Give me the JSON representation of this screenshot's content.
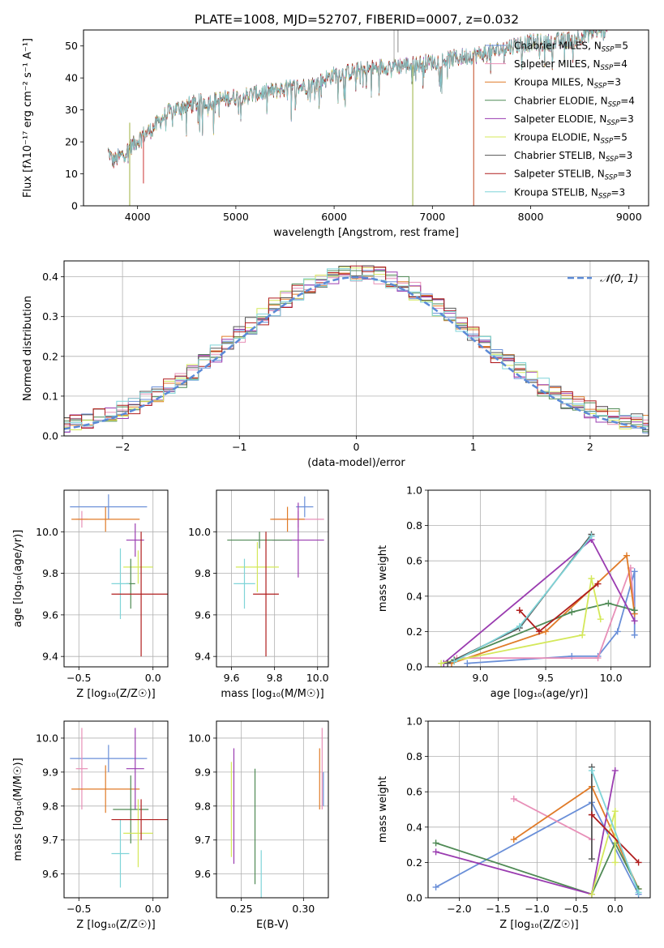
{
  "chart_data": [
    {
      "type": "line",
      "title": "PLATE=1008, MJD=52707, FIBERID=0007, z=0.032",
      "xlabel": "wavelength [Angstrom, rest frame]",
      "ylabel": "Flux [fλ10⁻¹⁷ erg cm⁻² s⁻¹ A⁻¹]",
      "xlim": [
        3450,
        9200
      ],
      "ylim": [
        0,
        55
      ],
      "xticks": [
        4000,
        5000,
        6000,
        7000,
        8000,
        9000
      ],
      "yticks": [
        0,
        10,
        20,
        30,
        40,
        50
      ],
      "grid": false,
      "legend_position": "top-right",
      "continuum": {
        "x": [
          3700,
          3750,
          3850,
          3950,
          4050,
          4150,
          4300,
          4450,
          4600,
          4800,
          5000,
          5200,
          5400,
          5600,
          5800,
          6000,
          6200,
          6400,
          6600,
          6800,
          7000,
          7200,
          7400,
          7600,
          7800,
          8000,
          8200,
          8400,
          8600,
          8750
        ],
        "y": [
          17,
          14,
          16,
          19,
          22,
          24,
          29,
          31,
          32,
          33,
          34,
          35,
          36,
          37,
          38,
          41,
          42,
          43,
          44,
          44,
          45,
          46,
          47,
          48,
          50,
          51,
          51,
          52,
          54,
          55
        ]
      },
      "series": [
        {
          "name": "Chabrier MILES, Nₛₛₚ=5",
          "label_main": "Chabrier MILES, N",
          "label_sub": "SSP",
          "label_tail": "=5",
          "color": "#6a8fd8"
        },
        {
          "name": "Salpeter MILES, Nₛₛₚ=4",
          "label_main": "Salpeter MILES, N",
          "label_sub": "SSP",
          "label_tail": "=4",
          "color": "#e890b8"
        },
        {
          "name": "Kroupa MILES, Nₛₛₚ=3",
          "label_main": "Kroupa MILES, N",
          "label_sub": "SSP",
          "label_tail": "=3",
          "color": "#e07b28"
        },
        {
          "name": "Chabrier ELODIE, Nₛₛₚ=4",
          "label_main": "Chabrier ELODIE, N",
          "label_sub": "SSP",
          "label_tail": "=4",
          "color": "#4f8a55"
        },
        {
          "name": "Salpeter ELODIE, Nₛₛₚ=3",
          "label_main": "Salpeter ELODIE, N",
          "label_sub": "SSP",
          "label_tail": "=3",
          "color": "#9a3cb0"
        },
        {
          "name": "Kroupa ELODIE, Nₛₛₚ=5",
          "label_main": "Kroupa ELODIE, N",
          "label_sub": "SSP",
          "label_tail": "=5",
          "color": "#d4e85a"
        },
        {
          "name": "Chabrier STELIB, Nₛₛₚ=3",
          "label_main": "Chabrier STELIB, N",
          "label_sub": "SSP",
          "label_tail": "=3",
          "color": "#555555"
        },
        {
          "name": "Salpeter STELIB, Nₛₛₚ=3",
          "label_main": "Salpeter STELIB, N",
          "label_sub": "SSP",
          "label_tail": "=3",
          "color": "#b01e1e"
        },
        {
          "name": "Kroupa STELIB, Nₛₛₚ=3",
          "label_main": "Kroupa STELIB, N",
          "label_sub": "SSP",
          "label_tail": "=3",
          "color": "#7fd4d8"
        }
      ]
    },
    {
      "type": "line",
      "xlabel": "(data-model)/error",
      "ylabel": "Normed distribution",
      "xlim": [
        -2.5,
        2.5
      ],
      "ylim": [
        0,
        0.44
      ],
      "xticks": [
        -2,
        -1,
        0,
        1,
        2
      ],
      "yticks": [
        0.0,
        0.1,
        0.2,
        0.3,
        0.4
      ],
      "grid": true,
      "legend_position": "top-right",
      "legend": "𝒩(0, 1)",
      "gaussian": {
        "mean": 0,
        "sigma": 1,
        "color": "#5b8ad6",
        "style": "dashed"
      }
    },
    {
      "type": "scatter",
      "xlabel": "Z [log₁₀(Z/Z☉)]",
      "ylabel": "age  [log₁₀(age/yr)]",
      "xlim": [
        -0.6,
        0.1
      ],
      "ylim": [
        9.35,
        10.2
      ],
      "xticks": [
        -0.5,
        0.0
      ],
      "yticks": [
        9.4,
        9.6,
        9.8,
        10.0
      ],
      "grid": true,
      "points": [
        {
          "x": -0.3,
          "y": 10.12,
          "xerr": 0.26,
          "yerr": 0.06,
          "color": "#6a8fd8"
        },
        {
          "x": -0.48,
          "y": 10.06,
          "xerr": 0.04,
          "yerr": 0.04,
          "color": "#e890b8"
        },
        {
          "x": -0.32,
          "y": 10.06,
          "xerr": 0.23,
          "yerr": 0.06,
          "color": "#e07b28"
        },
        {
          "x": -0.12,
          "y": 9.96,
          "xerr": 0.06,
          "yerr": 0.08,
          "color": "#9a3cb0"
        },
        {
          "x": -0.1,
          "y": 9.83,
          "xerr": 0.1,
          "yerr": 0.08,
          "color": "#d4e85a"
        },
        {
          "x": -0.15,
          "y": 9.75,
          "xerr": 0.03,
          "yerr": 0.12,
          "color": "#4f8a55"
        },
        {
          "x": -0.22,
          "y": 9.75,
          "xerr": 0.06,
          "yerr": 0.17,
          "color": "#7fd4d8"
        },
        {
          "x": -0.08,
          "y": 9.7,
          "xerr": 0.2,
          "yerr": 0.3,
          "color": "#b01e1e"
        }
      ]
    },
    {
      "type": "scatter",
      "xlabel": "mass [log₁₀(M/M☉)]",
      "xlim": [
        9.53,
        10.05
      ],
      "ylim": [
        9.35,
        10.2
      ],
      "xticks": [
        9.6,
        9.8,
        10.0
      ],
      "yticks": [
        9.4,
        9.6,
        9.8,
        10.0
      ],
      "grid": true,
      "points": [
        {
          "x": 9.94,
          "y": 10.12,
          "xerr": 0.04,
          "yerr": 0.05,
          "color": "#6a8fd8"
        },
        {
          "x": 9.91,
          "y": 10.06,
          "xerr": 0.12,
          "yerr": 0.04,
          "color": "#e890b8"
        },
        {
          "x": 9.86,
          "y": 10.06,
          "xerr": 0.08,
          "yerr": 0.06,
          "color": "#e07b28"
        },
        {
          "x": 9.91,
          "y": 9.96,
          "xerr": 0.12,
          "yerr": 0.18,
          "color": "#9a3cb0"
        },
        {
          "x": 9.73,
          "y": 9.96,
          "xerr": 0.15,
          "yerr": 0.04,
          "color": "#4f8a55"
        },
        {
          "x": 9.72,
          "y": 9.83,
          "xerr": 0.1,
          "yerr": 0.12,
          "color": "#d4e85a"
        },
        {
          "x": 9.66,
          "y": 9.75,
          "xerr": 0.05,
          "yerr": 0.12,
          "color": "#7fd4d8"
        },
        {
          "x": 9.76,
          "y": 9.7,
          "xerr": 0.06,
          "yerr": 0.3,
          "color": "#b01e1e"
        }
      ]
    },
    {
      "type": "line",
      "xlabel": "age  [log₁₀(age/yr)]",
      "ylabel": "mass weight",
      "xlim": [
        8.6,
        10.3
      ],
      "ylim": [
        0,
        1.0
      ],
      "xticks": [
        9.0,
        9.5,
        10.0
      ],
      "yticks": [
        0.0,
        0.2,
        0.4,
        0.6,
        0.8,
        1.0
      ],
      "grid": true,
      "series": [
        {
          "color": "#6a8fd8",
          "x": [
            8.9,
            9.7,
            9.9,
            10.05,
            10.18,
            10.18
          ],
          "y": [
            0.02,
            0.06,
            0.06,
            0.2,
            0.54,
            0.18
          ]
        },
        {
          "color": "#e890b8",
          "x": [
            8.82,
            9.9,
            10.15,
            10.18
          ],
          "y": [
            0.05,
            0.05,
            0.56,
            0.3
          ]
        },
        {
          "color": "#e07b28",
          "x": [
            8.78,
            9.5,
            10.12,
            10.18
          ],
          "y": [
            0.02,
            0.2,
            0.63,
            0.3
          ]
        },
        {
          "color": "#4f8a55",
          "x": [
            8.8,
            9.7,
            9.98,
            10.18
          ],
          "y": [
            0.04,
            0.31,
            0.36,
            0.32
          ]
        },
        {
          "color": "#9a3cb0",
          "x": [
            8.72,
            9.85,
            10.18
          ],
          "y": [
            0.02,
            0.72,
            0.26
          ]
        },
        {
          "color": "#d4e85a",
          "x": [
            8.7,
            9.78,
            9.85,
            9.92
          ],
          "y": [
            0.02,
            0.18,
            0.5,
            0.27
          ]
        },
        {
          "color": "#555555",
          "x": [
            8.75,
            9.3,
            9.85
          ],
          "y": [
            0.02,
            0.22,
            0.75
          ]
        },
        {
          "color": "#b01e1e",
          "x": [
            9.3,
            9.45,
            9.9
          ],
          "y": [
            0.32,
            0.2,
            0.47
          ]
        },
        {
          "color": "#7fd4d8",
          "x": [
            8.8,
            9.3,
            9.85
          ],
          "y": [
            0.03,
            0.23,
            0.74
          ]
        }
      ]
    },
    {
      "type": "scatter",
      "xlabel": "Z [log₁₀(Z/Z☉)]",
      "ylabel": "mass [log₁₀(M/M☉)]",
      "xlim": [
        -0.6,
        0.1
      ],
      "ylim": [
        9.53,
        10.05
      ],
      "xticks": [
        -0.5,
        0.0
      ],
      "yticks": [
        9.6,
        9.7,
        9.8,
        9.9,
        10.0
      ],
      "grid": true,
      "points": [
        {
          "x": -0.3,
          "y": 9.94,
          "xerr": 0.26,
          "yerr": 0.04,
          "color": "#6a8fd8"
        },
        {
          "x": -0.48,
          "y": 9.91,
          "xerr": 0.04,
          "yerr": 0.12,
          "color": "#e890b8"
        },
        {
          "x": -0.32,
          "y": 9.85,
          "xerr": 0.23,
          "yerr": 0.07,
          "color": "#e07b28"
        },
        {
          "x": -0.12,
          "y": 9.91,
          "xerr": 0.06,
          "yerr": 0.12,
          "color": "#9a3cb0"
        },
        {
          "x": -0.15,
          "y": 9.79,
          "xerr": 0.12,
          "yerr": 0.1,
          "color": "#4f8a55"
        },
        {
          "x": -0.1,
          "y": 9.72,
          "xerr": 0.1,
          "yerr": 0.1,
          "color": "#d4e85a"
        },
        {
          "x": -0.22,
          "y": 9.66,
          "xerr": 0.06,
          "yerr": 0.1,
          "color": "#7fd4d8"
        },
        {
          "x": -0.08,
          "y": 9.76,
          "xerr": 0.2,
          "yerr": 0.06,
          "color": "#b01e1e"
        }
      ]
    },
    {
      "type": "scatter",
      "xlabel": "E(B-V)",
      "xlim": [
        0.23,
        0.32
      ],
      "ylim": [
        9.53,
        10.05
      ],
      "xticks": [
        0.25,
        0.3
      ],
      "yticks": [
        9.6,
        9.7,
        9.8,
        9.9,
        10.0
      ],
      "grid": true,
      "points": [
        {
          "x": 0.242,
          "y": 9.79,
          "yerr": 0.14,
          "color": "#d4e85a"
        },
        {
          "x": 0.244,
          "y": 9.8,
          "yerr": 0.17,
          "color": "#9a3cb0"
        },
        {
          "x": 0.261,
          "y": 9.74,
          "yerr": 0.17,
          "color": "#4f8a55"
        },
        {
          "x": 0.266,
          "y": 9.59,
          "yerr": 0.08,
          "color": "#7fd4d8"
        },
        {
          "x": 0.313,
          "y": 9.88,
          "yerr": 0.09,
          "color": "#e07b28"
        },
        {
          "x": 0.315,
          "y": 9.91,
          "yerr": 0.12,
          "color": "#e890b8"
        },
        {
          "x": 0.316,
          "y": 9.85,
          "yerr": 0.05,
          "color": "#6a8fd8"
        }
      ]
    },
    {
      "type": "line",
      "xlabel": "Z [log₁₀(Z/Z☉)]",
      "ylabel": "mass weight",
      "xlim": [
        -2.4,
        0.45
      ],
      "ylim": [
        0,
        1.0
      ],
      "xticks": [
        -2.0,
        -1.5,
        -1.0,
        -0.5,
        0.0
      ],
      "yticks": [
        0.0,
        0.2,
        0.4,
        0.6,
        0.8,
        1.0
      ],
      "grid": true,
      "series": [
        {
          "color": "#6a8fd8",
          "x": [
            -2.3,
            -0.3,
            0.3
          ],
          "y": [
            0.06,
            0.54,
            0.02
          ]
        },
        {
          "color": "#e890b8",
          "x": [
            -1.3,
            -0.3
          ],
          "y": [
            0.56,
            0.33
          ]
        },
        {
          "color": "#e07b28",
          "x": [
            -1.3,
            -0.3,
            0.3
          ],
          "y": [
            0.33,
            0.63,
            0.05
          ]
        },
        {
          "color": "#4f8a55",
          "x": [
            -2.3,
            -0.3,
            0.0,
            0.3
          ],
          "y": [
            0.31,
            0.02,
            0.31,
            0.05
          ]
        },
        {
          "color": "#9a3cb0",
          "x": [
            -2.3,
            -0.3,
            0.0
          ],
          "y": [
            0.26,
            0.02,
            0.72
          ]
        },
        {
          "color": "#d4e85a",
          "x": [
            -0.3,
            0.0,
            0.0
          ],
          "y": [
            0.02,
            0.49,
            0.2
          ]
        },
        {
          "color": "#555555",
          "x": [
            -0.3,
            -0.3,
            -0.3
          ],
          "y": [
            0.74,
            0.47,
            0.22
          ]
        },
        {
          "color": "#b01e1e",
          "x": [
            -0.3,
            0.3
          ],
          "y": [
            0.47,
            0.2
          ]
        },
        {
          "color": "#7fd4d8",
          "x": [
            -0.3,
            0.3
          ],
          "y": [
            0.72,
            0.03
          ]
        }
      ]
    }
  ]
}
